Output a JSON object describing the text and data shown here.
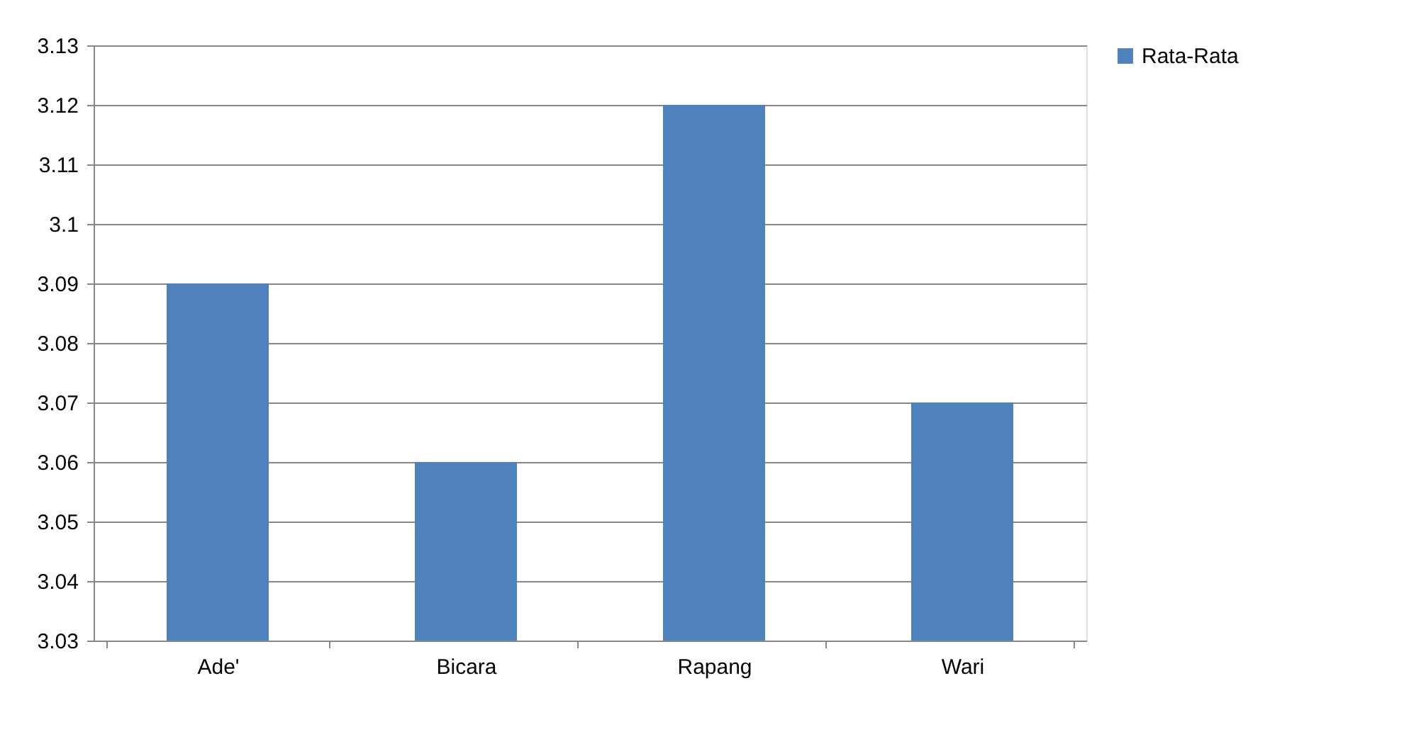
{
  "chart_data": {
    "type": "bar",
    "categories": [
      "Ade'",
      "Bicara",
      "Rapang",
      "Wari"
    ],
    "series": [
      {
        "name": "Rata-Rata",
        "color": "#4f81bd",
        "values": [
          3.09,
          3.06,
          3.12,
          3.07
        ]
      }
    ],
    "ylim": [
      3.03,
      3.13
    ],
    "yticks": [
      3.03,
      3.04,
      3.05,
      3.06,
      3.07,
      3.08,
      3.09,
      3.1,
      3.11,
      3.12,
      3.13
    ],
    "grid": "y",
    "legend": "right"
  }
}
